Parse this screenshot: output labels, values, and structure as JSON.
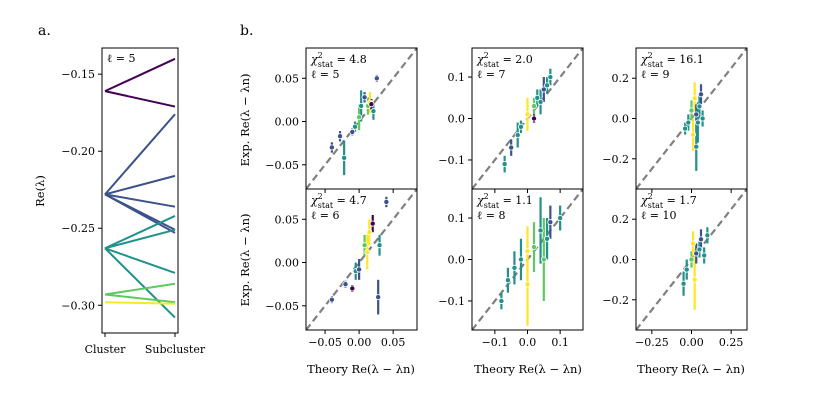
{
  "panel_labels": {
    "a": "a.",
    "b": "b."
  },
  "colors": {
    "cluster_lines": [
      "#440154",
      "#3b528b",
      "#3b528b",
      "#3b528b",
      "#3b528b",
      "#21918c",
      "#21918c",
      "#21918c",
      "#5ec962",
      "#fde725"
    ],
    "diagonal": "#808080",
    "point_edge": "#ffffff"
  },
  "chart_data": [
    {
      "type": "line",
      "id": "spectrum",
      "title": "ℓ = 5",
      "ylabel": "Re(λ)",
      "categories": [
        "Cluster",
        "Subcluster"
      ],
      "ylim": [
        -0.318,
        -0.133
      ],
      "yticks": [
        -0.15,
        -0.2,
        -0.25,
        -0.3
      ],
      "ytick_labels": [
        "−0.15",
        "−0.20",
        "−0.25",
        "−0.30"
      ],
      "clusters": [
        {
          "value": -0.161,
          "subclusters": [
            -0.14,
            -0.171
          ],
          "color": "#440154"
        },
        {
          "value": -0.228,
          "subclusters": [
            -0.176,
            -0.216,
            -0.236,
            -0.251,
            -0.253
          ],
          "color": "#3b528b"
        },
        {
          "value": -0.263,
          "subclusters": [
            -0.242,
            -0.251,
            -0.279,
            -0.308
          ],
          "color": "#21918c"
        },
        {
          "value": -0.293,
          "subclusters": [
            -0.286,
            -0.298
          ],
          "color": "#5ec962"
        },
        {
          "value": -0.298,
          "subclusters": [
            -0.299
          ],
          "color": "#fde725"
        }
      ]
    },
    {
      "type": "scatter",
      "grid": "2x3 error-bar scatter",
      "xlabel": "Theory Re(λ − λn)",
      "ylabel": "Exp. Re(λ − λn)",
      "panels": [
        {
          "ell": "ℓ = 5",
          "chi2": "4.8",
          "lim": [
            -0.078,
            0.085
          ],
          "ticks": [
            -0.05,
            0.0,
            0.05
          ],
          "tick_labels": [
            "−0.05",
            "0.00",
            "0.05"
          ],
          "points": [
            [
              -0.04,
              -0.03,
              0.006,
              "#3b528b"
            ],
            [
              -0.028,
              -0.017,
              0.006,
              "#3b528b"
            ],
            [
              -0.022,
              -0.042,
              0.02,
              "#21918c"
            ],
            [
              -0.01,
              -0.012,
              0.004,
              "#3b528b"
            ],
            [
              -0.006,
              -0.006,
              0.006,
              "#21918c"
            ],
            [
              0.0,
              0.005,
              0.015,
              "#5ec962"
            ],
            [
              0.003,
              0.018,
              0.018,
              "#21918c"
            ],
            [
              0.008,
              0.028,
              0.006,
              "#3b528b"
            ],
            [
              0.013,
              0.018,
              0.01,
              "#5ec962"
            ],
            [
              0.016,
              0.022,
              0.012,
              "#fde725"
            ],
            [
              0.018,
              0.02,
              0.006,
              "#440154"
            ],
            [
              0.021,
              0.012,
              0.01,
              "#21918c"
            ],
            [
              0.026,
              0.05,
              0.004,
              "#3b528b"
            ]
          ]
        },
        {
          "ell": "ℓ = 7",
          "chi2": "2.0",
          "lim": [
            -0.17,
            0.17
          ],
          "ticks": [
            -0.1,
            0.0,
            0.1
          ],
          "tick_labels": [
            "−0.1",
            "0.0",
            "0.1"
          ],
          "points": [
            [
              -0.07,
              -0.11,
              0.02,
              "#21918c"
            ],
            [
              -0.05,
              -0.07,
              0.02,
              "#3b528b"
            ],
            [
              -0.03,
              -0.04,
              0.03,
              "#21918c"
            ],
            [
              -0.02,
              -0.02,
              0.015,
              "#21918c"
            ],
            [
              0.0,
              0.01,
              0.04,
              "#fde725"
            ],
            [
              0.02,
              0.03,
              0.02,
              "#5ec962"
            ],
            [
              0.03,
              0.05,
              0.02,
              "#21918c"
            ],
            [
              0.04,
              0.04,
              0.03,
              "#21918c"
            ],
            [
              0.05,
              0.07,
              0.03,
              "#3b528b"
            ],
            [
              0.02,
              0.0,
              0.01,
              "#440154"
            ],
            [
              0.06,
              0.08,
              0.02,
              "#21918c"
            ],
            [
              0.07,
              0.1,
              0.02,
              "#21918c"
            ]
          ]
        },
        {
          "ell": "ℓ = 9",
          "chi2": "16.1",
          "lim": [
            -0.35,
            0.35
          ],
          "ticks": [
            -0.2,
            0.0,
            0.2
          ],
          "tick_labels": [
            "−0.2",
            "0.0",
            "0.2"
          ],
          "points": [
            [
              -0.04,
              -0.05,
              0.03,
              "#21918c"
            ],
            [
              -0.02,
              -0.02,
              0.04,
              "#21918c"
            ],
            [
              0.0,
              0.04,
              0.05,
              "#5ec962"
            ],
            [
              0.01,
              -0.08,
              0.08,
              "#fde725"
            ],
            [
              0.02,
              0.1,
              0.08,
              "#fde725"
            ],
            [
              0.03,
              0.02,
              0.05,
              "#3b528b"
            ],
            [
              0.04,
              -0.02,
              0.1,
              "#21918c"
            ],
            [
              0.05,
              0.06,
              0.06,
              "#21918c"
            ],
            [
              0.06,
              0.12,
              0.05,
              "#3b528b"
            ],
            [
              0.07,
              0.0,
              0.04,
              "#21918c"
            ],
            [
              0.03,
              -0.14,
              0.12,
              "#21918c"
            ]
          ]
        },
        {
          "ell": "ℓ = 6",
          "chi2": "4.7",
          "lim": [
            -0.078,
            0.085
          ],
          "ticks": [
            -0.05,
            0.0,
            0.05
          ],
          "tick_labels": [
            "−0.05",
            "0.00",
            "0.05"
          ],
          "points": [
            [
              -0.04,
              -0.043,
              0.004,
              "#3b528b"
            ],
            [
              -0.02,
              -0.025,
              0.004,
              "#3b528b"
            ],
            [
              -0.01,
              -0.03,
              0.004,
              "#440154"
            ],
            [
              -0.005,
              -0.01,
              0.01,
              "#21918c"
            ],
            [
              0.0,
              -0.008,
              0.012,
              "#3b528b"
            ],
            [
              0.008,
              0.02,
              0.012,
              "#5ec962"
            ],
            [
              0.012,
              0.012,
              0.02,
              "#fde725"
            ],
            [
              0.015,
              0.035,
              0.015,
              "#fde725"
            ],
            [
              0.02,
              0.045,
              0.01,
              "#440154"
            ],
            [
              0.028,
              -0.04,
              0.02,
              "#3b528b"
            ],
            [
              0.03,
              0.02,
              0.012,
              "#21918c"
            ],
            [
              0.04,
              0.07,
              0.006,
              "#3b528b"
            ]
          ]
        },
        {
          "ell": "ℓ = 8",
          "chi2": "1.1",
          "lim": [
            -0.17,
            0.17
          ],
          "ticks": [
            -0.1,
            0.0,
            0.1
          ],
          "tick_labels": [
            "−0.1",
            "0.0",
            "0.1"
          ],
          "points": [
            [
              -0.08,
              -0.1,
              0.02,
              "#21918c"
            ],
            [
              -0.06,
              -0.05,
              0.03,
              "#21918c"
            ],
            [
              -0.04,
              -0.02,
              0.04,
              "#21918c"
            ],
            [
              -0.02,
              0.0,
              0.05,
              "#21918c"
            ],
            [
              0.0,
              0.02,
              0.06,
              "#fde725"
            ],
            [
              0.0,
              -0.06,
              0.1,
              "#fde725"
            ],
            [
              0.02,
              0.03,
              0.06,
              "#5ec962"
            ],
            [
              0.04,
              0.07,
              0.08,
              "#21918c"
            ],
            [
              0.05,
              0.0,
              0.1,
              "#5ec962"
            ],
            [
              0.06,
              0.05,
              0.05,
              "#21918c"
            ],
            [
              0.07,
              0.09,
              0.04,
              "#3b528b"
            ],
            [
              0.1,
              0.1,
              0.03,
              "#21918c"
            ]
          ]
        },
        {
          "ell": "ℓ = 10",
          "chi2": "1.7",
          "lim": [
            -0.35,
            0.35
          ],
          "ticks": [
            -0.2,
            0.0,
            0.2
          ],
          "tick_labels": [
            "−0.2",
            "0.0",
            "0.2"
          ],
          "points": [
            [
              -0.05,
              -0.12,
              0.06,
              "#21918c"
            ],
            [
              -0.03,
              -0.05,
              0.05,
              "#21918c"
            ],
            [
              0.0,
              0.0,
              0.04,
              "#5ec962"
            ],
            [
              0.01,
              0.08,
              0.06,
              "#fde725"
            ],
            [
              0.02,
              -0.1,
              0.15,
              "#fde725"
            ],
            [
              0.03,
              0.03,
              0.05,
              "#3b528b"
            ],
            [
              0.05,
              0.05,
              0.04,
              "#21918c"
            ],
            [
              0.06,
              0.1,
              0.05,
              "#3b528b"
            ],
            [
              0.08,
              0.02,
              0.04,
              "#21918c"
            ],
            [
              0.1,
              0.12,
              0.04,
              "#21918c"
            ]
          ]
        }
      ],
      "bottom_ticks": {
        "col1": {
          "ticks": [
            -0.05,
            0.0,
            0.05
          ],
          "labels": [
            "−0.05",
            "0.00",
            "0.05"
          ]
        },
        "col2": {
          "ticks": [
            -0.1,
            0.0,
            0.1
          ],
          "labels": [
            "−0.1",
            "0.0",
            "0.1"
          ]
        },
        "col3": {
          "ticks": [
            -0.25,
            0.0,
            0.25
          ],
          "labels": [
            "−0.25",
            "0.00",
            "0.25"
          ]
        }
      }
    }
  ]
}
